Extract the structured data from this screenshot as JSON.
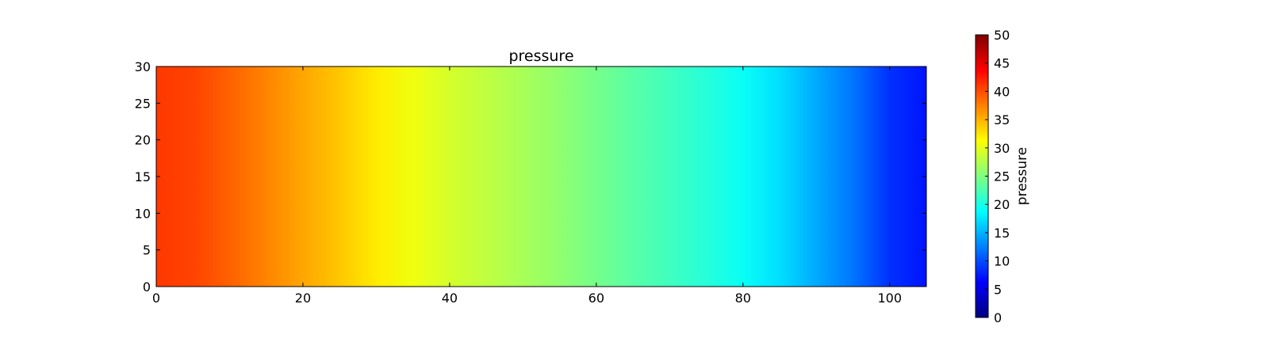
{
  "chart_data": {
    "type": "heatmap",
    "title": "pressure",
    "xlabel": "",
    "ylabel": "",
    "colormap": "jet",
    "xlim": [
      0,
      105
    ],
    "ylim": [
      0,
      30
    ],
    "x_ticks": [
      0,
      20,
      40,
      60,
      80,
      100
    ],
    "x_tick_labels": [
      "0",
      "20",
      "40",
      "60",
      "80",
      "100"
    ],
    "y_ticks": [
      0,
      5,
      10,
      15,
      20,
      25,
      30
    ],
    "y_tick_labels": [
      "0",
      "5",
      "10",
      "15",
      "20",
      "25",
      "30"
    ],
    "profile_x": [
      0,
      5,
      10,
      15,
      20,
      25,
      30,
      35,
      40,
      45,
      50,
      55,
      60,
      65,
      70,
      75,
      80,
      85,
      90,
      95,
      100,
      105
    ],
    "profile_pressure": [
      41,
      40.5,
      39,
      37.3,
      35.6,
      34,
      32.2,
      30.5,
      29.2,
      28.1,
      27,
      25.8,
      24.5,
      23.1,
      21.9,
      20.6,
      19.2,
      17.2,
      14.6,
      12.0,
      8.6,
      7.2
    ],
    "colorbar": {
      "label": "pressure",
      "range": [
        0,
        50
      ],
      "ticks": [
        0,
        5,
        10,
        15,
        20,
        25,
        30,
        35,
        40,
        45,
        50
      ],
      "tick_labels": [
        "0",
        "5",
        "10",
        "15",
        "20",
        "25",
        "30",
        "35",
        "40",
        "45",
        "50"
      ]
    }
  }
}
